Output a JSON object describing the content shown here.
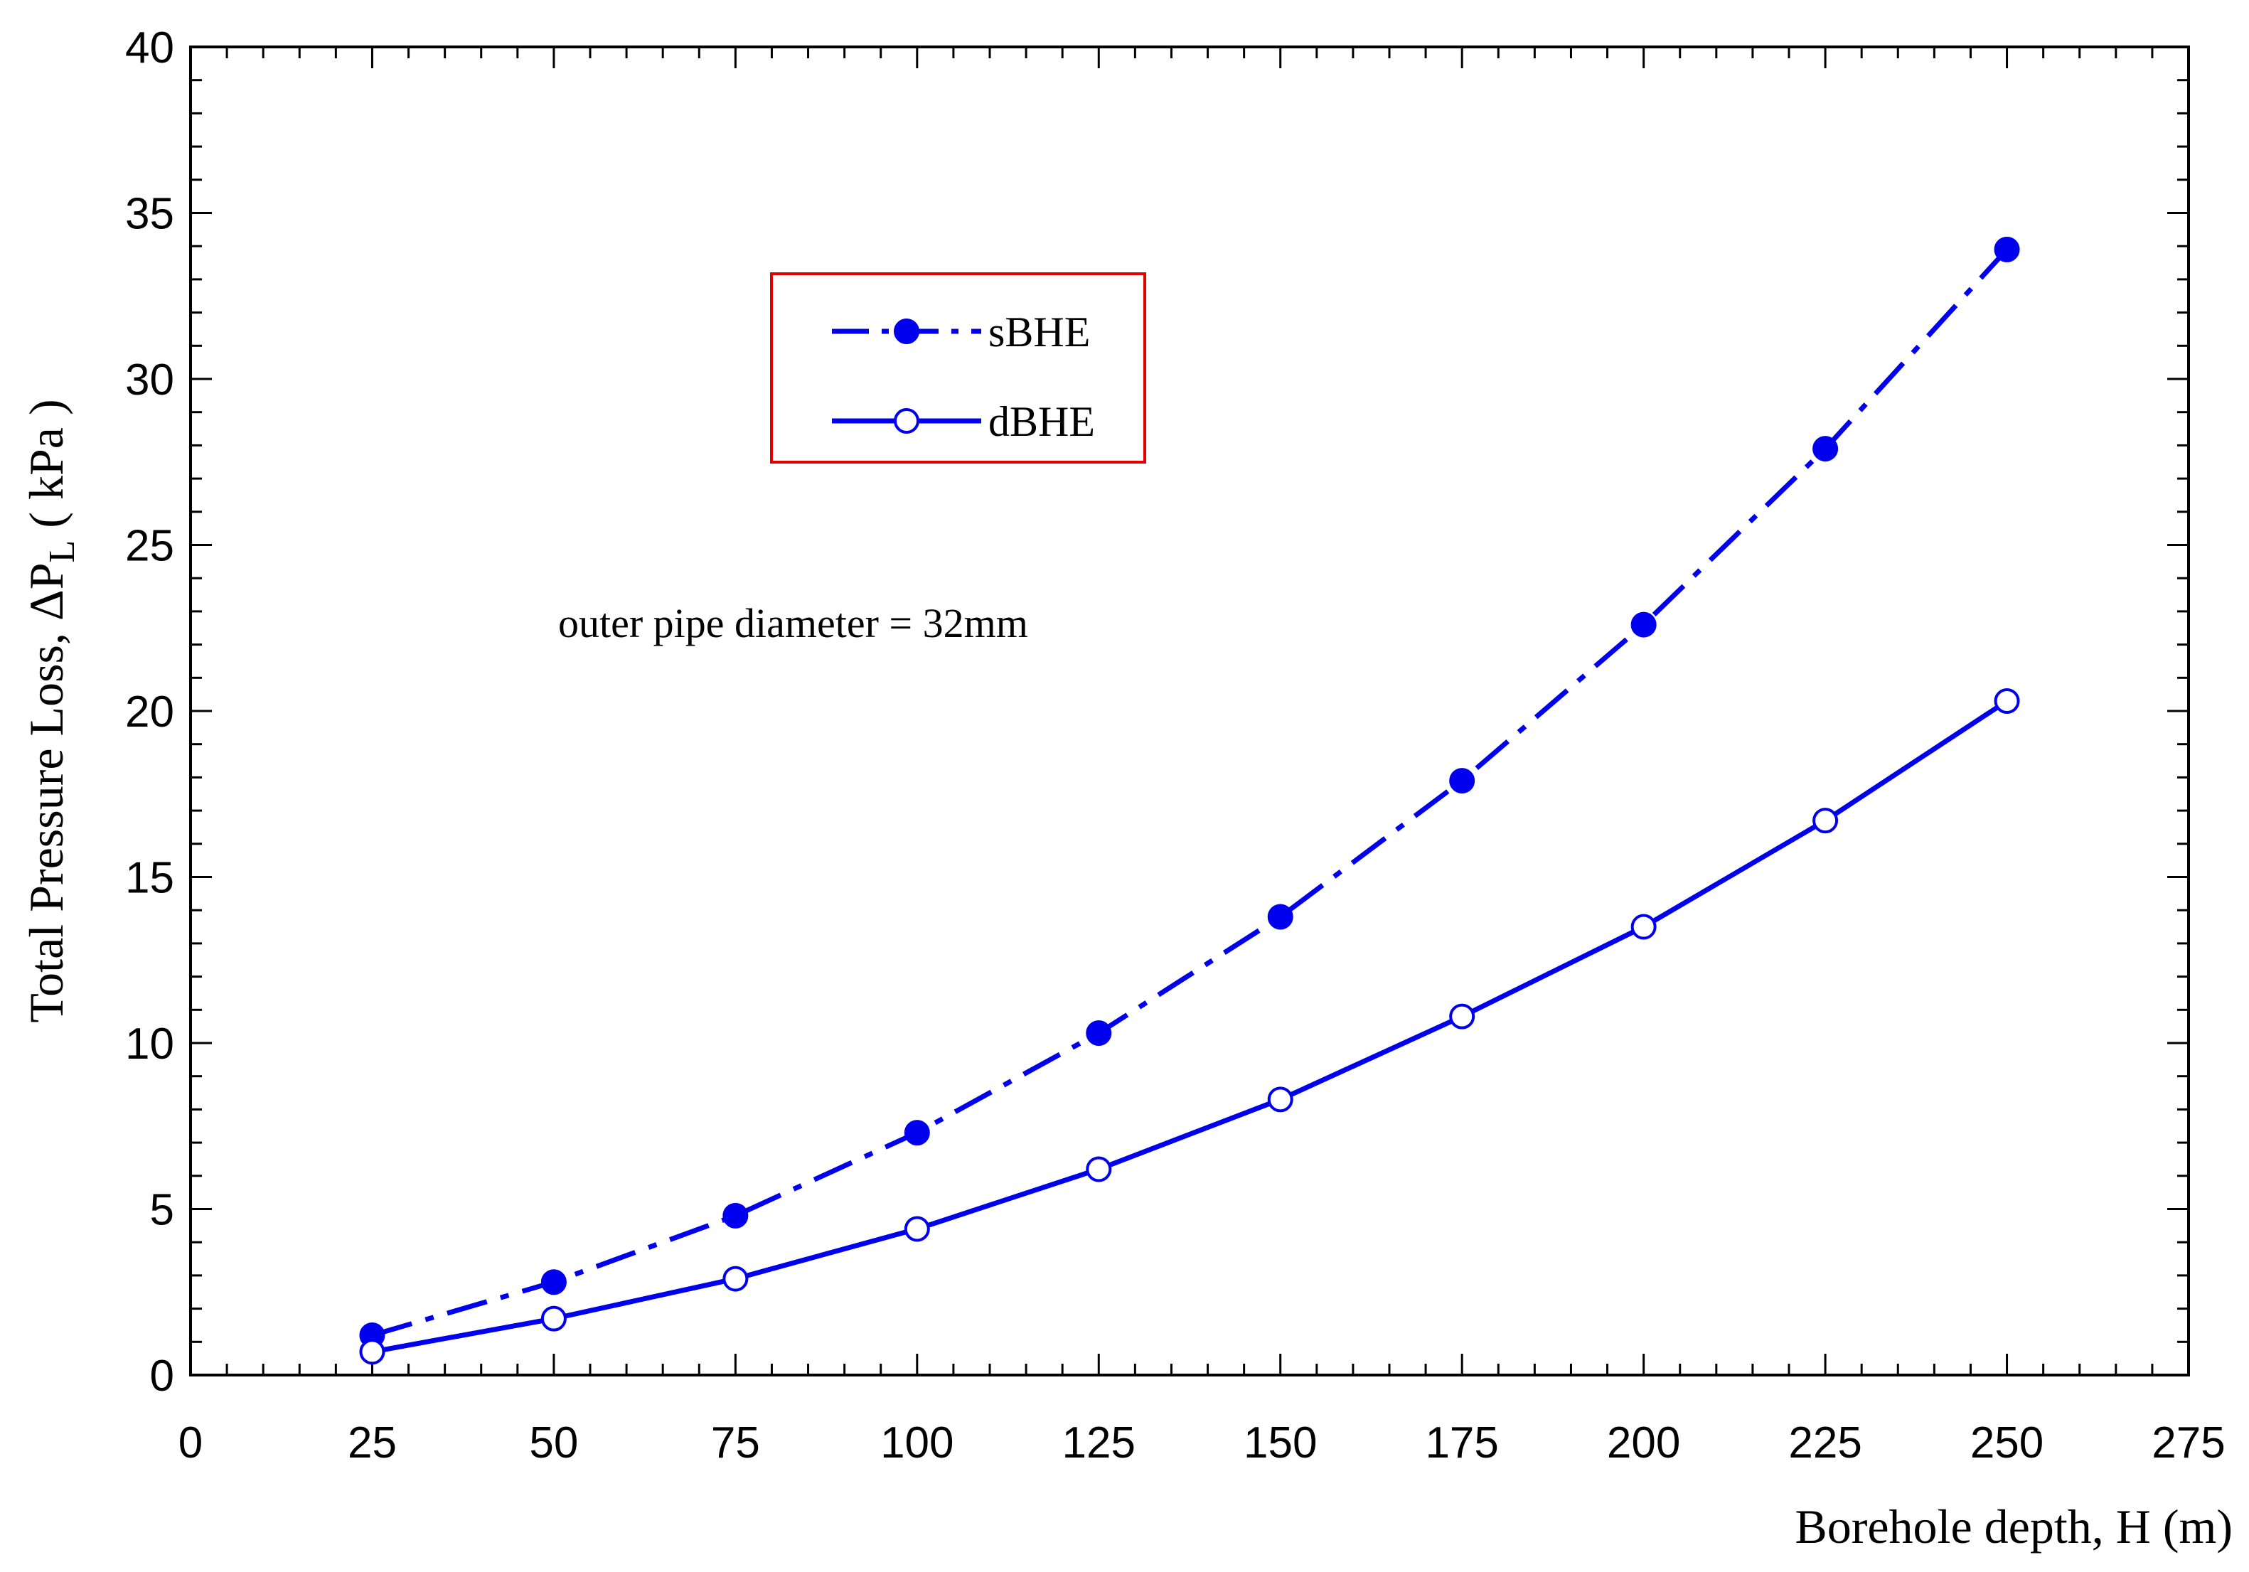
{
  "chart_data": {
    "type": "line",
    "xlabel": "Borehole depth, H (m)",
    "ylabel": {
      "prefix": "Total Pressure Loss, ΔP",
      "subscript": "L",
      "suffix": " ( kPa )"
    },
    "xlim": [
      0,
      275
    ],
    "ylim": [
      0,
      40
    ],
    "xticks": [
      0,
      25,
      50,
      75,
      100,
      125,
      150,
      175,
      200,
      225,
      250,
      275
    ],
    "yticks": [
      0,
      5,
      10,
      15,
      20,
      25,
      30,
      35,
      40
    ],
    "annotation": "outer pipe diameter = 32mm",
    "legend_position": "upper-left-center",
    "grid": false,
    "colors": {
      "series": "#0000ee",
      "legend_border": "#e00000",
      "axes": "#000000"
    },
    "x": [
      25,
      50,
      75,
      100,
      125,
      150,
      175,
      200,
      225,
      250
    ],
    "series": [
      {
        "name": "sBHE",
        "style": "dash-dot",
        "marker": "filled-circle",
        "values": [
          1.2,
          2.8,
          4.8,
          7.3,
          10.3,
          13.8,
          17.9,
          22.6,
          27.9,
          33.9
        ]
      },
      {
        "name": "dBHE",
        "style": "solid",
        "marker": "open-circle",
        "values": [
          0.7,
          1.7,
          2.9,
          4.4,
          6.2,
          8.3,
          10.8,
          13.5,
          16.7,
          20.3
        ]
      }
    ]
  }
}
